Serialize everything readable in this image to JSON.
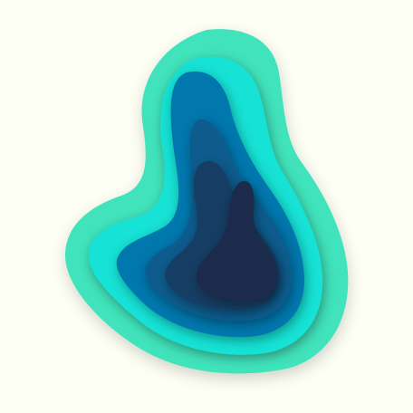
{
  "image": {
    "subject": "papercut-layers-illustration",
    "colors": {
      "background": "#fefff4",
      "layer_1": "#3fe3bb",
      "layer_2": "#12e2d5",
      "layer_3": "#0577ad",
      "layer_4": "#0a5b8d",
      "layer_5": "#153d64",
      "layer_6": "#1a2a4b"
    }
  }
}
